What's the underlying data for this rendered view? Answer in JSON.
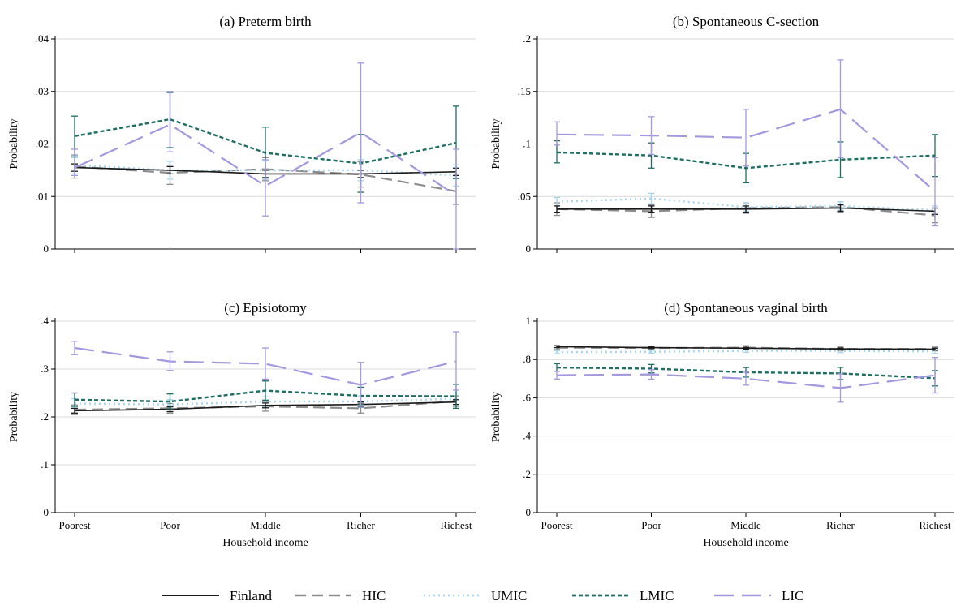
{
  "style": {
    "series_colors": {
      "Finland": "#1a1a1a",
      "HIC": "#8c8c8c",
      "UMIC": "#a9d6ee",
      "LMIC": "#1e6e63",
      "LIC": "#a598de"
    },
    "grid_color": "#d9d9d9"
  },
  "chart_data": [
    {
      "type": "line",
      "title": "(a) Preterm birth",
      "xlabel": "",
      "ylabel": "Probability",
      "categories": [
        "Poorest",
        "Poor",
        "Middle",
        "Richer",
        "Richest"
      ],
      "ylim": [
        0,
        0.04
      ],
      "yticks": [
        0,
        0.01,
        0.02,
        0.03,
        0.04
      ],
      "ytick_labels": [
        "0",
        ".01",
        ".02",
        ".03",
        ".04"
      ],
      "show_x_tick_labels": false,
      "grid": true,
      "series": [
        {
          "name": "Finland",
          "values": [
            0.0155,
            0.015,
            0.0143,
            0.0143,
            0.0147
          ],
          "lower": [
            0.0148,
            0.0143,
            0.0136,
            0.0136,
            0.014
          ],
          "upper": [
            0.0162,
            0.0157,
            0.015,
            0.015,
            0.0154
          ]
        },
        {
          "name": "HIC",
          "values": [
            0.0157,
            0.0145,
            0.0152,
            0.0142,
            0.011
          ],
          "lower": [
            0.0135,
            0.0123,
            0.013,
            0.0118,
            0.0085
          ],
          "upper": [
            0.0179,
            0.0167,
            0.0174,
            0.0166,
            0.0135
          ]
        },
        {
          "name": "UMIC",
          "values": [
            0.016,
            0.015,
            0.015,
            0.015,
            0.014
          ],
          "lower": [
            0.0143,
            0.0133,
            0.0132,
            0.013,
            0.012
          ],
          "upper": [
            0.0177,
            0.0167,
            0.0168,
            0.017,
            0.016
          ]
        },
        {
          "name": "LMIC",
          "values": [
            0.0215,
            0.0247,
            0.0183,
            0.0163,
            0.0202
          ],
          "lower": [
            0.0175,
            0.0193,
            0.0135,
            0.0108,
            0.0134
          ],
          "upper": [
            0.0253,
            0.0298,
            0.0232,
            0.0218,
            0.0272
          ]
        },
        {
          "name": "LIC",
          "values": [
            0.0155,
            0.0237,
            0.012,
            0.0222,
            0.0102
          ],
          "lower": [
            0.014,
            0.0185,
            0.0063,
            0.0088,
            0.0
          ],
          "upper": [
            0.019,
            0.03,
            0.017,
            0.0354,
            0.019
          ]
        }
      ]
    },
    {
      "type": "line",
      "title": "(b) Spontaneous C-section",
      "xlabel": "",
      "ylabel": "Probability",
      "categories": [
        "Poorest",
        "Poor",
        "Middle",
        "Richer",
        "Richest"
      ],
      "ylim": [
        0,
        0.2
      ],
      "yticks": [
        0,
        0.05,
        0.1,
        0.15,
        0.2
      ],
      "ytick_labels": [
        "0",
        ".05",
        ".1",
        ".15",
        ".2"
      ],
      "show_x_tick_labels": false,
      "grid": true,
      "series": [
        {
          "name": "Finland",
          "values": [
            0.038,
            0.038,
            0.038,
            0.039,
            0.036
          ],
          "lower": [
            0.035,
            0.035,
            0.035,
            0.036,
            0.033
          ],
          "upper": [
            0.041,
            0.041,
            0.041,
            0.042,
            0.039
          ]
        },
        {
          "name": "HIC",
          "values": [
            0.038,
            0.036,
            0.039,
            0.04,
            0.032
          ],
          "lower": [
            0.032,
            0.03,
            0.034,
            0.035,
            0.025
          ],
          "upper": [
            0.044,
            0.042,
            0.044,
            0.045,
            0.039
          ]
        },
        {
          "name": "UMIC",
          "values": [
            0.045,
            0.048,
            0.04,
            0.041,
            0.037
          ],
          "lower": [
            0.041,
            0.043,
            0.036,
            0.037,
            0.033
          ],
          "upper": [
            0.049,
            0.053,
            0.044,
            0.045,
            0.041
          ]
        },
        {
          "name": "LMIC",
          "values": [
            0.092,
            0.089,
            0.077,
            0.085,
            0.089
          ],
          "lower": [
            0.082,
            0.077,
            0.063,
            0.068,
            0.069
          ],
          "upper": [
            0.103,
            0.101,
            0.091,
            0.102,
            0.109
          ]
        },
        {
          "name": "LIC",
          "values": [
            0.109,
            0.108,
            0.106,
            0.133,
            0.055
          ],
          "lower": [
            0.099,
            0.09,
            0.079,
            0.087,
            0.022
          ],
          "upper": [
            0.121,
            0.126,
            0.133,
            0.18,
            0.087
          ]
        }
      ]
    },
    {
      "type": "line",
      "title": "(c) Episiotomy",
      "xlabel": "Household income",
      "ylabel": "Probability",
      "categories": [
        "Poorest",
        "Poor",
        "Middle",
        "Richer",
        "Richest"
      ],
      "ylim": [
        0,
        0.4
      ],
      "yticks": [
        0,
        0.1,
        0.2,
        0.3,
        0.4
      ],
      "ytick_labels": [
        "0",
        ".1",
        ".2",
        ".3",
        ".4"
      ],
      "show_x_tick_labels": true,
      "grid": true,
      "series": [
        {
          "name": "Finland",
          "values": [
            0.213,
            0.216,
            0.224,
            0.226,
            0.231
          ],
          "lower": [
            0.208,
            0.211,
            0.219,
            0.221,
            0.226
          ],
          "upper": [
            0.218,
            0.221,
            0.229,
            0.231,
            0.236
          ]
        },
        {
          "name": "HIC",
          "values": [
            0.215,
            0.218,
            0.222,
            0.218,
            0.233
          ],
          "lower": [
            0.205,
            0.208,
            0.212,
            0.208,
            0.222
          ],
          "upper": [
            0.225,
            0.228,
            0.232,
            0.228,
            0.244
          ]
        },
        {
          "name": "UMIC",
          "values": [
            0.228,
            0.226,
            0.232,
            0.232,
            0.238
          ],
          "lower": [
            0.218,
            0.216,
            0.222,
            0.22,
            0.226
          ],
          "upper": [
            0.238,
            0.236,
            0.242,
            0.244,
            0.25
          ]
        },
        {
          "name": "LMIC",
          "values": [
            0.236,
            0.232,
            0.255,
            0.244,
            0.243
          ],
          "lower": [
            0.222,
            0.217,
            0.235,
            0.226,
            0.218
          ],
          "upper": [
            0.25,
            0.248,
            0.275,
            0.262,
            0.268
          ]
        },
        {
          "name": "LIC",
          "values": [
            0.344,
            0.316,
            0.311,
            0.267,
            0.316
          ],
          "lower": [
            0.33,
            0.297,
            0.279,
            0.222,
            0.256
          ],
          "upper": [
            0.358,
            0.336,
            0.344,
            0.314,
            0.378
          ]
        }
      ]
    },
    {
      "type": "line",
      "title": "(d) Spontaneous vaginal birth",
      "xlabel": "Household income",
      "ylabel": "Probability",
      "categories": [
        "Poorest",
        "Poor",
        "Middle",
        "Richer",
        "Richest"
      ],
      "ylim": [
        0,
        1
      ],
      "yticks": [
        0,
        0.2,
        0.4,
        0.6,
        0.8,
        1
      ],
      "ytick_labels": [
        "0",
        ".2",
        ".4",
        ".6",
        ".8",
        "1"
      ],
      "show_x_tick_labels": true,
      "grid": true,
      "series": [
        {
          "name": "Finland",
          "values": [
            0.867,
            0.862,
            0.859,
            0.855,
            0.854
          ],
          "lower": [
            0.862,
            0.857,
            0.854,
            0.85,
            0.849
          ],
          "upper": [
            0.872,
            0.867,
            0.864,
            0.86,
            0.859
          ]
        },
        {
          "name": "HIC",
          "values": [
            0.862,
            0.86,
            0.862,
            0.855,
            0.855
          ],
          "lower": [
            0.852,
            0.85,
            0.852,
            0.845,
            0.845
          ],
          "upper": [
            0.872,
            0.87,
            0.872,
            0.865,
            0.865
          ]
        },
        {
          "name": "UMIC",
          "values": [
            0.838,
            0.84,
            0.845,
            0.845,
            0.842
          ],
          "lower": [
            0.83,
            0.832,
            0.837,
            0.836,
            0.832
          ],
          "upper": [
            0.846,
            0.848,
            0.853,
            0.854,
            0.852
          ]
        },
        {
          "name": "LMIC",
          "values": [
            0.758,
            0.752,
            0.733,
            0.727,
            0.702
          ],
          "lower": [
            0.738,
            0.73,
            0.708,
            0.695,
            0.662
          ],
          "upper": [
            0.778,
            0.774,
            0.758,
            0.759,
            0.742
          ]
        },
        {
          "name": "LIC",
          "values": [
            0.718,
            0.722,
            0.7,
            0.651,
            0.718
          ],
          "lower": [
            0.698,
            0.697,
            0.666,
            0.577,
            0.625
          ],
          "upper": [
            0.738,
            0.747,
            0.734,
            0.725,
            0.811
          ]
        }
      ]
    }
  ],
  "legend": {
    "placement": "bottom",
    "items": [
      "Finland",
      "HIC",
      "UMIC",
      "LMIC",
      "LIC"
    ]
  }
}
